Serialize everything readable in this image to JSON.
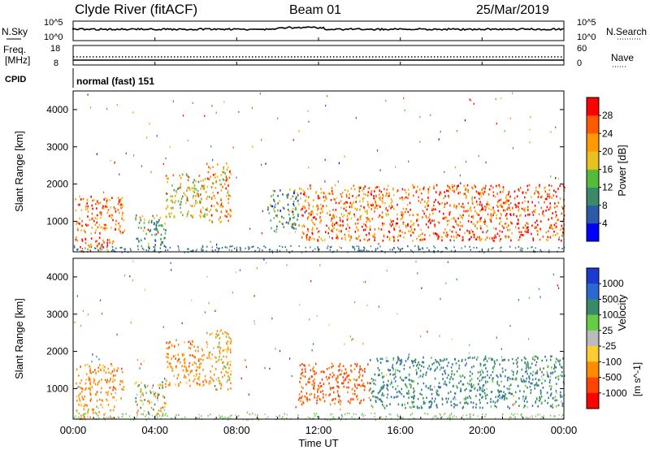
{
  "header": {
    "title": "Clyde River (fitACF)",
    "beam": "Beam 01",
    "date": "25/Mar/2019"
  },
  "top_panels": {
    "nsky_label": "N.Sky",
    "nsky_ticks": [
      "10^5",
      "10^0"
    ],
    "nsearch_label": "N.Search",
    "nsearch_ticks": [
      "10^5",
      "10^0"
    ],
    "freq_label": "Freq.",
    "freq_unit": "[MHz]",
    "freq_ticks": [
      "18",
      "8"
    ],
    "nave_label": "Nave",
    "nave_ticks": [
      "60",
      "0"
    ],
    "cpid_label": "CPID",
    "cpid_value": "normal (fast) 151"
  },
  "chart_data": [
    {
      "type": "heatmap",
      "panel": "power",
      "ylabel": "Slant Range [km]",
      "y_ticks": [
        "1000",
        "2000",
        "3000",
        "4000"
      ],
      "ylim": [
        180,
        4500
      ],
      "xlim_hours": [
        0,
        24
      ],
      "colorbar_label": "Power [dB]",
      "colorbar_ticks": [
        "4",
        "8",
        "12",
        "16",
        "20",
        "24",
        "28"
      ],
      "colorbar_colors": [
        "#0000ff",
        "#2a5aa8",
        "#3a8a6a",
        "#55bb3a",
        "#e8c020",
        "#ff9a00",
        "#ff5a00",
        "#ff0000"
      ],
      "echo_regions": [
        {
          "t0": 0.1,
          "t1": 2.5,
          "r0": 700,
          "r1": 1700,
          "level": 24
        },
        {
          "t0": 0.1,
          "t1": 2.0,
          "r0": 200,
          "r1": 600,
          "level": 26
        },
        {
          "t0": 3.0,
          "t1": 4.5,
          "r0": 300,
          "r1": 1200,
          "level": 12
        },
        {
          "t0": 4.5,
          "t1": 6.5,
          "r0": 1100,
          "r1": 2300,
          "level": 18
        },
        {
          "t0": 6.5,
          "t1": 7.7,
          "r0": 1000,
          "r1": 2600,
          "level": 22
        },
        {
          "t0": 9.5,
          "t1": 11.0,
          "r0": 800,
          "r1": 1900,
          "level": 10
        },
        {
          "t0": 11.0,
          "t1": 17.0,
          "r0": 500,
          "r1": 2000,
          "level": 24
        },
        {
          "t0": 17.0,
          "t1": 24.0,
          "r0": 500,
          "r1": 2000,
          "level": 26
        }
      ]
    },
    {
      "type": "heatmap",
      "panel": "velocity",
      "ylabel": "Slant Range [km]",
      "y_ticks": [
        "1000",
        "2000",
        "3000",
        "4000"
      ],
      "ylim": [
        180,
        4500
      ],
      "xlim_hours": [
        0,
        24
      ],
      "colorbar_label": "Velocity",
      "colorbar_unit": "[m s^-1]",
      "colorbar_ticks": [
        "1000",
        "500",
        "100",
        "25",
        "-25",
        "-100",
        "-500",
        "-1000"
      ],
      "colorbar_colors": [
        "#1a3ad0",
        "#2a6ad0",
        "#3a8a6a",
        "#66cc44",
        "#bbbbbb",
        "#ffcc33",
        "#ff8c00",
        "#ff4400",
        "#ff0000"
      ],
      "echo_regions": [
        {
          "t0": 0.1,
          "t1": 2.5,
          "r0": 700,
          "r1": 1700,
          "level": -300
        },
        {
          "t0": 0.1,
          "t1": 2.0,
          "r0": 200,
          "r1": 600,
          "level": -200
        },
        {
          "t0": 3.0,
          "t1": 4.5,
          "r0": 300,
          "r1": 1200,
          "level": 50
        },
        {
          "t0": 4.5,
          "t1": 6.5,
          "r0": 1100,
          "r1": 2300,
          "level": -300
        },
        {
          "t0": 6.5,
          "t1": 7.7,
          "r0": 1000,
          "r1": 2600,
          "level": -200
        },
        {
          "t0": 11.0,
          "t1": 14.5,
          "r0": 600,
          "r1": 1700,
          "level": -600
        },
        {
          "t0": 14.5,
          "t1": 24.0,
          "r0": 500,
          "r1": 1900,
          "level": 300
        }
      ]
    }
  ],
  "x_axis": {
    "ticks": [
      "00:00",
      "04:00",
      "08:00",
      "12:00",
      "16:00",
      "20:00",
      "00:00"
    ],
    "label": "Time UT"
  }
}
